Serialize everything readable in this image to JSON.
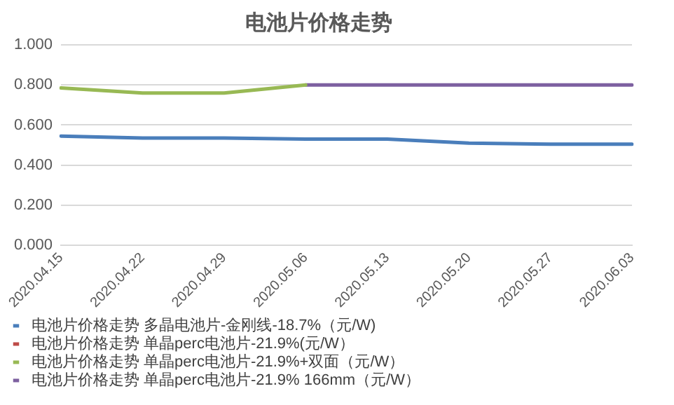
{
  "chart_data": {
    "type": "line",
    "title": "电池片价格走势",
    "categories": [
      "2020.04.15",
      "2020.04.22",
      "2020.04.29",
      "2020.05.06",
      "2020.05.13",
      "2020.05.20",
      "2020.05.27",
      "2020.06.03"
    ],
    "series": [
      {
        "name": "电池片价格走势 多晶电池片-金刚线-18.7%（元/W)",
        "color": "#4a7ebb",
        "values": [
          0.545,
          0.535,
          0.535,
          0.53,
          0.53,
          0.51,
          0.505,
          0.505
        ]
      },
      {
        "name": "电池片价格走势 单晶perc电池片-21.9%(元/W）",
        "color": "#be4b48",
        "values": [
          null,
          null,
          null,
          null,
          null,
          null,
          null,
          null
        ]
      },
      {
        "name": "电池片价格走势 单晶perc电池片-21.9%+双面（元/W）",
        "color": "#98b954",
        "values": [
          0.785,
          0.76,
          0.76,
          0.8,
          null,
          null,
          null,
          null
        ]
      },
      {
        "name": "电池片价格走势 单晶perc电池片-21.9% 166mm（元/W）",
        "color": "#7d60a0",
        "values": [
          null,
          null,
          null,
          0.8,
          0.8,
          0.8,
          0.8,
          0.8
        ]
      }
    ],
    "ylim": [
      0,
      1
    ],
    "yticks": [
      {
        "value": 0,
        "label": "0.000"
      },
      {
        "value": 0.2,
        "label": "0.200"
      },
      {
        "value": 0.4,
        "label": "0.400"
      },
      {
        "value": 0.6,
        "label": "0.600"
      },
      {
        "value": 0.8,
        "label": "0.800"
      },
      {
        "value": 1,
        "label": "1.000"
      }
    ],
    "grid": "y",
    "legend": "bottom",
    "marker": "none",
    "line_style": "solid"
  }
}
